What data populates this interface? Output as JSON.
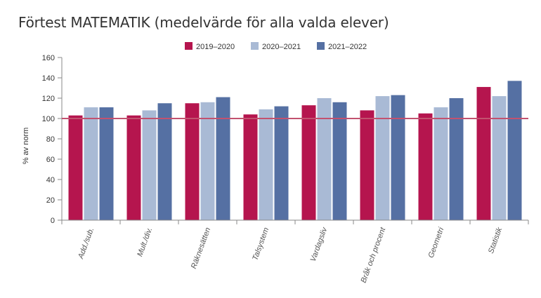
{
  "chart_data": {
    "type": "bar",
    "title": "Förtest MATEMATIK (medelvärde för alla valda elever)",
    "ylabel": "% av norm",
    "xlabel": "",
    "ylim": [
      0,
      160
    ],
    "yticks": [
      0,
      20,
      40,
      60,
      80,
      100,
      120,
      140,
      160
    ],
    "reference_line": 100,
    "grid": false,
    "legend_position": "top-center",
    "categories": [
      "Add./sub.",
      "Mult./div.",
      "Räknesätten",
      "Talsystem",
      "Vardagsliv",
      "Bråk och procent",
      "Geometri",
      "Statistik"
    ],
    "series": [
      {
        "name": "2019–2020",
        "color": "#b5154e",
        "values": [
          103,
          103,
          115,
          104,
          113,
          108,
          105,
          131
        ]
      },
      {
        "name": "2020–2021",
        "color": "#a9bad5",
        "values": [
          111,
          108,
          116,
          109,
          120,
          122,
          111,
          122
        ]
      },
      {
        "name": "2021–2022",
        "color": "#5570a3",
        "values": [
          111,
          115,
          121,
          112,
          116,
          123,
          120,
          137
        ]
      }
    ],
    "reference_line_color": "#c2526f",
    "axis_color": "#888888"
  }
}
